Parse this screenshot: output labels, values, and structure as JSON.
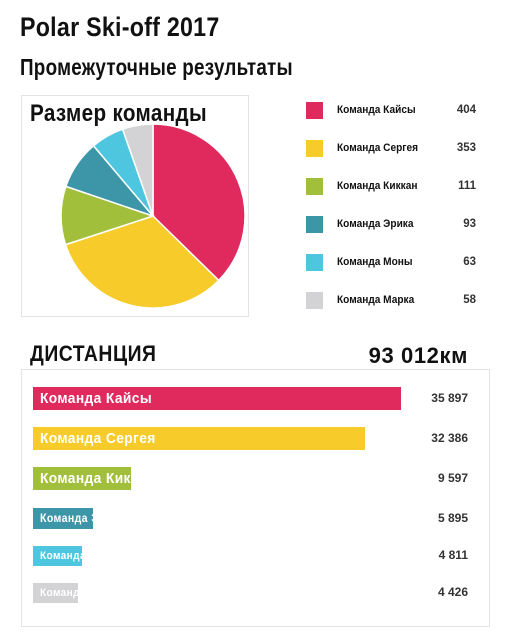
{
  "header": {
    "title": "Polar Ski-off 2017",
    "subtitle": "Промежуточные результаты"
  },
  "chart_data": [
    {
      "type": "pie",
      "title": "Размер команды",
      "legend_position": "right",
      "categories": [
        "Команда Кайсы",
        "Команда Сергея",
        "Команда Киккан",
        "Команда Эрика",
        "Команда Моны",
        "Команда Марка"
      ],
      "values": [
        404,
        353,
        111,
        93,
        63,
        58
      ],
      "value_labels": [
        "404",
        "353",
        "111",
        "93",
        "63",
        "58"
      ],
      "colors": [
        "#e02a5e",
        "#f7cc2a",
        "#a2bf3c",
        "#3c96a8",
        "#4fc6df",
        "#d3d3d6"
      ]
    },
    {
      "type": "bar",
      "orientation": "horizontal",
      "title": "ДИСТАНЦИЯ",
      "total_label": "93 012км",
      "categories": [
        "Команда Кайсы",
        "Команда Сергея",
        "Команда Киккан",
        "Команда Эрика",
        "Команда Моны",
        "Команда Марка"
      ],
      "values": [
        35897,
        32386,
        9597,
        5895,
        4811,
        4426
      ],
      "value_labels": [
        "35 897",
        "32 386",
        "9 597",
        "5 895",
        "4 811",
        "4 426"
      ],
      "colors": [
        "#e02a5e",
        "#f7cc2a",
        "#a2bf3c",
        "#3c96a8",
        "#4fc6df",
        "#d3d3d6"
      ],
      "xlim": [
        0,
        35897
      ]
    }
  ]
}
